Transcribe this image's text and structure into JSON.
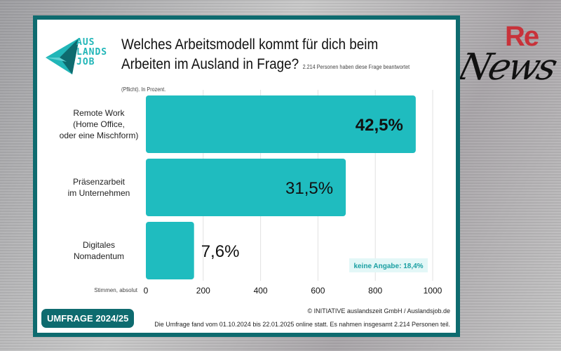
{
  "brand": {
    "logo_text": [
      "AUS",
      "LANDS",
      "JOB"
    ],
    "news_logo": {
      "re": "Re",
      "news": "News"
    }
  },
  "colors": {
    "bar": "#1fbcbf",
    "frame": "#0e6b6f",
    "badge_bg": "#e3f7f7"
  },
  "chart_data": {
    "type": "bar",
    "orientation": "horizontal",
    "title": "Welches Arbeitsmodell kommt für dich beim Arbeiten im Ausland in Frage?",
    "subtitle": "2.214 Personen haben diese Frage beantwortet (Pflicht). In Prozent.",
    "categories": [
      [
        "Remote Work",
        "(Home Office,",
        "oder eine Mischform)"
      ],
      [
        "Präsenzarbeit",
        "im Unternehmen"
      ],
      [
        "Digitales",
        "Nomadentum"
      ]
    ],
    "values": [
      941,
      697,
      168
    ],
    "data_labels": [
      "42,5%",
      "31,5%",
      "7,6%"
    ],
    "xlabel": "Stimmen, absolut",
    "xlim": [
      0,
      1000
    ],
    "xticks": [
      "0",
      "200",
      "400",
      "600",
      "800",
      "1000"
    ],
    "grid": true,
    "annotation": "keine Angabe: 18,4%"
  },
  "footer": {
    "badge": "UMFRAGE 2024/25",
    "copyright": "© INITIATIVE auslandszeit GmbH / Auslandsjob.de",
    "note": "Die Umfrage fand vom 01.10.2024 bis 22.01.2025 online statt. Es nahmen insgesamt 2.214 Personen teil."
  }
}
